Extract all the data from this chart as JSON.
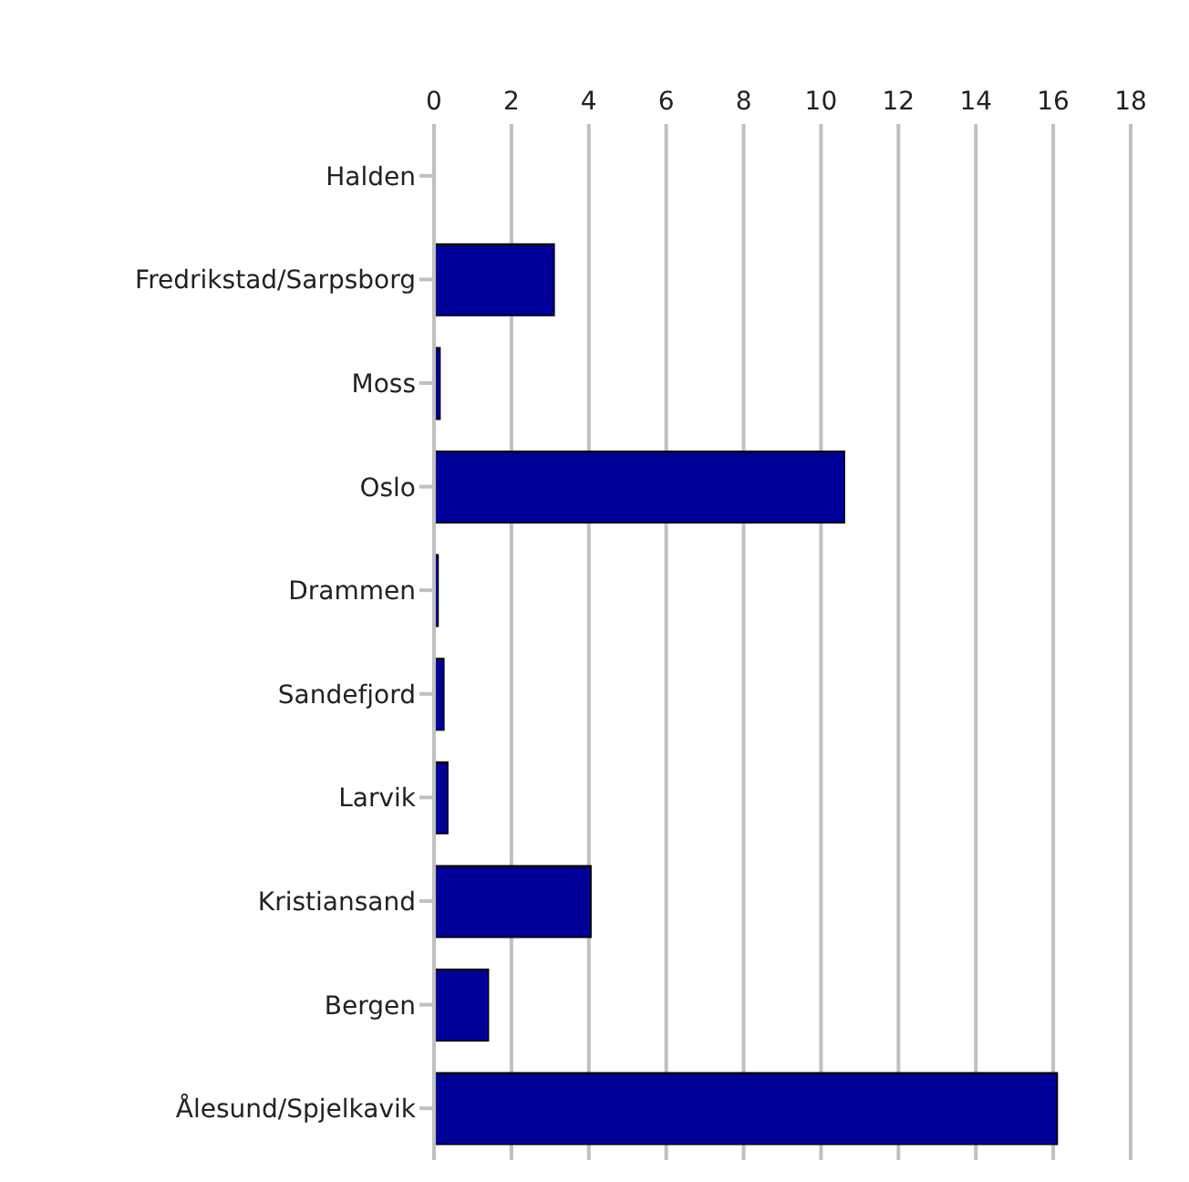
{
  "chart_data": {
    "type": "bar",
    "orientation": "horizontal",
    "categories": [
      "Halden",
      "Fredrikstad/Sarpsborg",
      "Moss",
      "Oslo",
      "Drammen",
      "Sandefjord",
      "Larvik",
      "Kristiansand",
      "Bergen",
      "Ålesund/Spjelkavik"
    ],
    "values": [
      0,
      3.1,
      0.15,
      10.6,
      0.1,
      0.25,
      0.35,
      4.05,
      1.4,
      16.1
    ],
    "color": "#000099",
    "xlim": [
      0,
      18
    ],
    "xticks": [
      0,
      2,
      4,
      6,
      8,
      10,
      12,
      14,
      16,
      18
    ],
    "grid": "x"
  }
}
